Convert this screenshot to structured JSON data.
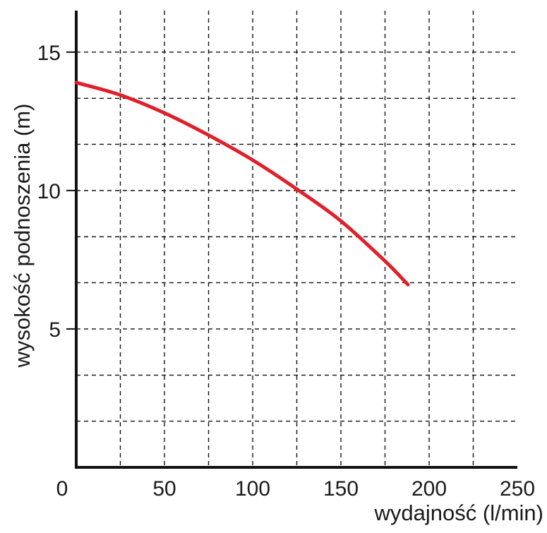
{
  "chart_data": {
    "type": "line",
    "title": "",
    "xlabel": "wydajność (l/min)",
    "ylabel": "wysokość podnoszenia (m)",
    "xlim": [
      0,
      250
    ],
    "ylim": [
      0,
      16.5
    ],
    "x_ticks": [
      0,
      50,
      100,
      150,
      200,
      250
    ],
    "x_tick_labels": [
      "0",
      "50",
      "100",
      "150",
      "200",
      "250"
    ],
    "y_ticks": [
      5,
      10,
      15
    ],
    "y_tick_labels": [
      "5",
      "10",
      "15"
    ],
    "x_grid": [
      25,
      50,
      75,
      100,
      125,
      150,
      175,
      200,
      225
    ],
    "y_grid": [
      1.67,
      3.33,
      5,
      6.67,
      8.33,
      10,
      11.67,
      13.33,
      15
    ],
    "grid": true,
    "grid_style": "dashed",
    "series": [
      {
        "color": "#e0202a",
        "x": [
          0,
          25,
          50,
          75,
          100,
          125,
          150,
          175,
          188
        ],
        "y": [
          13.9,
          13.45,
          12.8,
          12.0,
          11.1,
          10.05,
          8.9,
          7.45,
          6.6
        ]
      }
    ]
  }
}
